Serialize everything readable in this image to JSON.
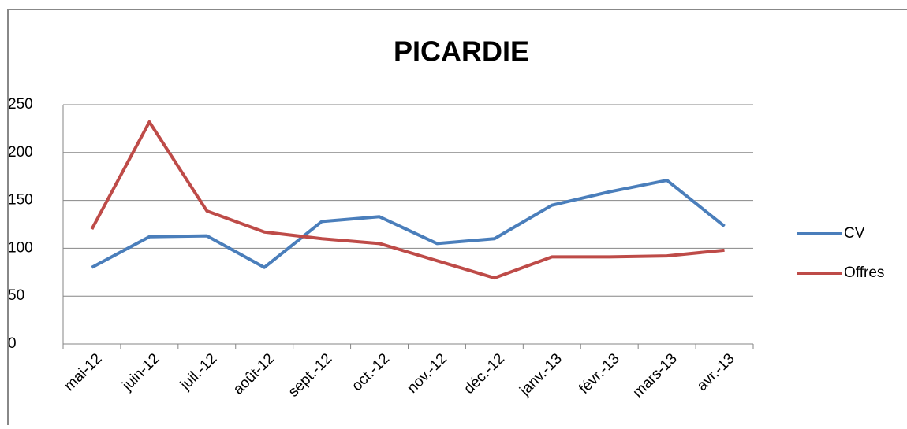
{
  "chart_data": {
    "type": "line",
    "title": "PICARDIE",
    "categories": [
      "mai-12",
      "juin-12",
      "juil.-12",
      "août-12",
      "sept.-12",
      "oct.-12",
      "nov.-12",
      "déc.-12",
      "janv.-13",
      "févr.-13",
      "mars-13",
      "avr.-13"
    ],
    "series": [
      {
        "name": "CV",
        "color": "#4a7ebb",
        "values": [
          80,
          112,
          113,
          80,
          128,
          133,
          105,
          110,
          145,
          159,
          171,
          123
        ]
      },
      {
        "name": "Offres",
        "color": "#be4b48",
        "values": [
          120,
          232,
          139,
          117,
          110,
          105,
          87,
          69,
          91,
          91,
          92,
          98
        ]
      }
    ],
    "ylim": [
      0,
      250
    ],
    "yticks": [
      0,
      50,
      100,
      150,
      200,
      250
    ],
    "grid": true,
    "legend": "right"
  }
}
